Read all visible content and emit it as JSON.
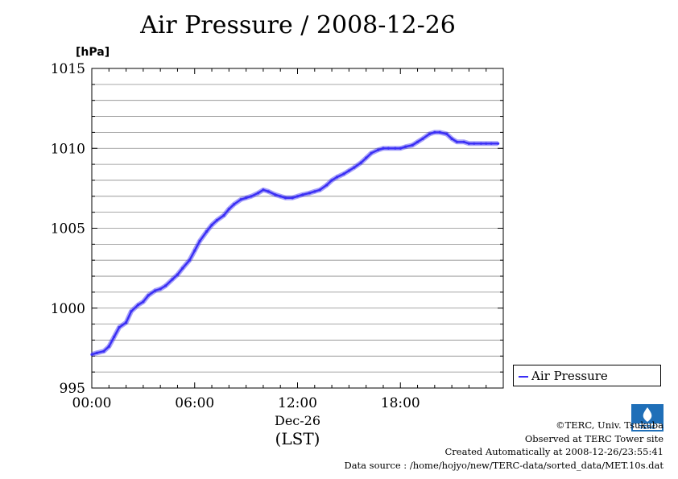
{
  "title": "Air Pressure / 2008-12-26",
  "legend": {
    "label": "Air Pressure",
    "color": "#3a2ef5"
  },
  "credits": {
    "copyright": "©TERC, Univ. Tsukuba",
    "observed": "Observed at TERC Tower site",
    "created": "Created Automatically at 2008-12-26/23:55:41",
    "source": "Data source : /home/hojyo/new/TERC-data/sorted_data/MET.10s.dat"
  },
  "chart_data": {
    "type": "line",
    "title": "Air Pressure / 2008-12-26",
    "ylabel": "[hPa]",
    "ylim": [
      995,
      1015
    ],
    "yticks": [
      995,
      1000,
      1005,
      1010,
      1015
    ],
    "xlim": [
      0,
      24
    ],
    "xticks": [
      {
        "h": 0,
        "label": "00:00"
      },
      {
        "h": 6,
        "label": "06:00"
      },
      {
        "h": 12,
        "label": "12:00"
      },
      {
        "h": 18,
        "label": "18:00"
      }
    ],
    "date_label": "Dec-26",
    "xlabel": "(LST)",
    "grid": true,
    "legend_position": "right",
    "series": [
      {
        "name": "Air Pressure",
        "color": "#3a2ef5",
        "x": [
          0,
          0.3,
          0.7,
          1.0,
          1.3,
          1.6,
          2.0,
          2.3,
          2.7,
          3.0,
          3.3,
          3.7,
          4.0,
          4.3,
          4.7,
          5.0,
          5.3,
          5.7,
          6.0,
          6.3,
          6.7,
          7.0,
          7.3,
          7.7,
          8.0,
          8.3,
          8.7,
          9.0,
          9.3,
          9.7,
          10.0,
          10.3,
          10.7,
          11.0,
          11.3,
          11.7,
          12.0,
          12.3,
          12.7,
          13.0,
          13.3,
          13.7,
          14.0,
          14.3,
          14.7,
          15.0,
          15.3,
          15.7,
          16.0,
          16.3,
          16.7,
          17.0,
          17.3,
          17.7,
          18.0,
          18.3,
          18.7,
          19.0,
          19.3,
          19.7,
          20.0,
          20.3,
          20.7,
          21.0,
          21.3,
          21.7,
          22.0,
          22.3,
          22.7,
          23.0,
          23.3,
          23.7
        ],
        "values": [
          997.1,
          997.2,
          997.3,
          997.6,
          998.2,
          998.8,
          999.1,
          999.8,
          1000.2,
          1000.4,
          1000.8,
          1001.1,
          1001.2,
          1001.4,
          1001.8,
          1002.1,
          1002.5,
          1003.0,
          1003.6,
          1004.2,
          1004.8,
          1005.2,
          1005.5,
          1005.8,
          1006.2,
          1006.5,
          1006.8,
          1006.9,
          1007.0,
          1007.2,
          1007.4,
          1007.3,
          1007.1,
          1007.0,
          1006.9,
          1006.9,
          1007.0,
          1007.1,
          1007.2,
          1007.3,
          1007.4,
          1007.7,
          1008.0,
          1008.2,
          1008.4,
          1008.6,
          1008.8,
          1009.1,
          1009.4,
          1009.7,
          1009.9,
          1010.0,
          1010.0,
          1010.0,
          1010.0,
          1010.1,
          1010.2,
          1010.4,
          1010.6,
          1010.9,
          1011.0,
          1011.0,
          1010.9,
          1010.6,
          1010.4,
          1010.4,
          1010.3,
          1010.3,
          1010.3,
          1010.3,
          1010.3,
          1010.3
        ]
      }
    ]
  }
}
